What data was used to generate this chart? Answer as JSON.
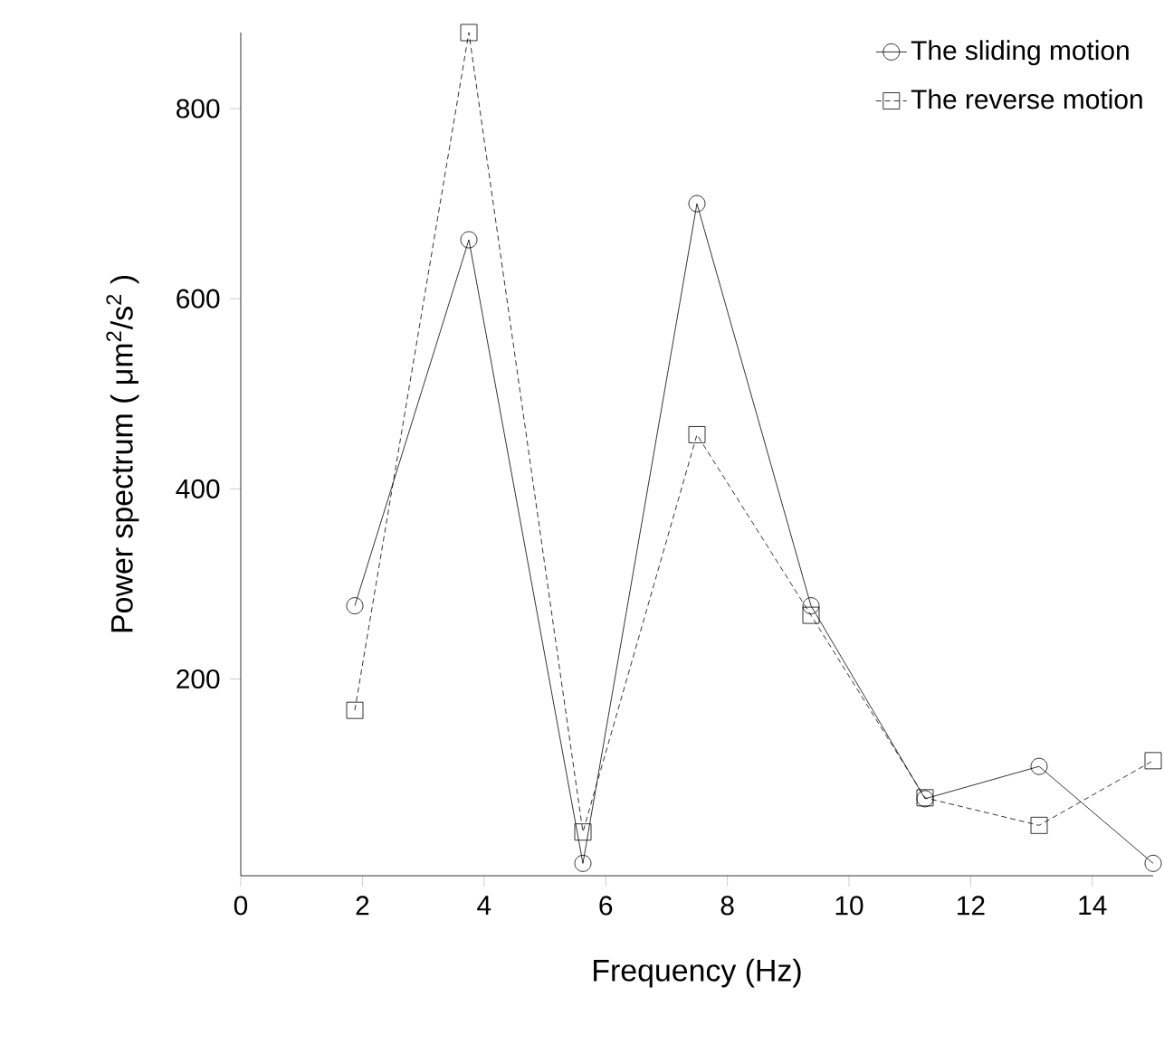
{
  "chart_data": {
    "type": "line",
    "xlabel": "Frequency (Hz)",
    "ylabel": "Power spectrum ( μm$^{2}$/s$^{2}$ )",
    "x": [
      1.875,
      3.75,
      5.625,
      7.5,
      9.375,
      11.25,
      13.125,
      15
    ],
    "series": [
      {
        "name": "The sliding motion",
        "color": "#000000",
        "marker": "circle",
        "line_style": "solid",
        "values": [
          277,
          662,
          6,
          700,
          277,
          74,
          108,
          6
        ]
      },
      {
        "name": "The reverse motion",
        "color": "#000000",
        "marker": "square",
        "line_style": "dashed",
        "values": [
          167,
          880,
          39,
          457,
          267,
          75,
          46,
          114
        ]
      }
    ],
    "xlim": [
      0,
      15
    ],
    "ylim": [
      -7,
      880
    ],
    "xticks": [
      0,
      2,
      4,
      6,
      8,
      10,
      12,
      14
    ],
    "yticks": [
      200,
      400,
      600,
      800
    ],
    "legend": "top right",
    "grid": false
  }
}
